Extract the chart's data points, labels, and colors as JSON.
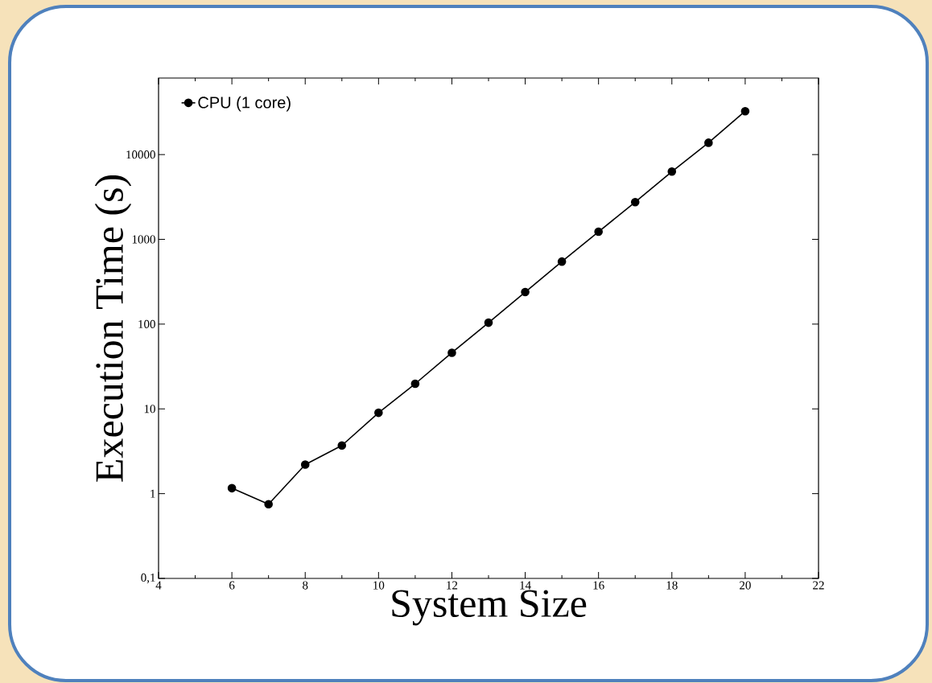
{
  "chart_data": {
    "type": "line",
    "xlabel": "System Size",
    "ylabel": "Execution Time (s)",
    "x": [
      6,
      7,
      8,
      9,
      10,
      11,
      12,
      13,
      14,
      15,
      16,
      17,
      18,
      19,
      20
    ],
    "series": [
      {
        "name": "CPU (1 core)",
        "color": "#000000",
        "values": [
          1.16,
          0.75,
          2.2,
          3.7,
          9.0,
          19.8,
          46,
          104,
          239,
          547,
          1230,
          2750,
          6300,
          13800,
          32500
        ]
      }
    ],
    "xlim": [
      4,
      22
    ],
    "ylim": [
      0.1,
      80000
    ],
    "xticks": [
      4,
      6,
      8,
      10,
      12,
      14,
      16,
      18,
      20,
      22
    ],
    "yticks": [
      {
        "value": 0.1,
        "label": "0,1"
      },
      1,
      10,
      100,
      1000,
      10000
    ],
    "log": "y",
    "legend": "top left",
    "marker": "circle",
    "line_style": "solid"
  }
}
